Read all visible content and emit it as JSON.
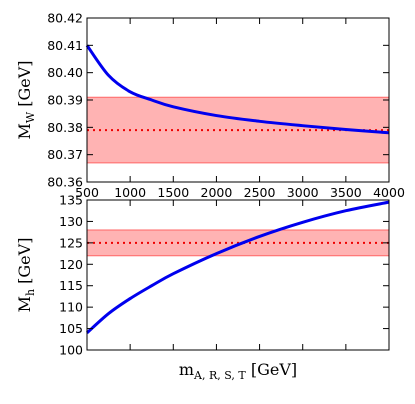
{
  "chart_data": [
    {
      "type": "line",
      "ylabel_main": "M",
      "ylabel_sub": "W",
      "ylabel_unit": " [GeV]",
      "xlabel": "",
      "xlim": [
        500,
        4000
      ],
      "ylim": [
        80.36,
        80.42
      ],
      "xticks": [
        "500",
        "1000",
        "1500",
        "2000",
        "2500",
        "3000",
        "3500",
        "4000"
      ],
      "yticks": [
        "80.36",
        "80.37",
        "80.38",
        "80.39",
        "80.40",
        "80.41",
        "80.42"
      ],
      "band": {
        "low": 80.367,
        "high": 80.391,
        "center": 80.379
      },
      "x": [
        500,
        750,
        1000,
        1250,
        1500,
        2000,
        2500,
        3000,
        3500,
        4000
      ],
      "series": [
        {
          "values": [
            80.41,
            80.399,
            80.393,
            80.39,
            80.3875,
            80.3843,
            80.3822,
            80.3806,
            80.3792,
            80.378
          ]
        }
      ],
      "colors": {
        "line": "#0000ee",
        "band": "#ffb3b3",
        "band_edge": "#ff6666",
        "center": "#ee0000"
      }
    },
    {
      "type": "line",
      "ylabel_main": "M",
      "ylabel_sub": "h",
      "ylabel_unit": " [GeV]",
      "xlabel_main": "m",
      "xlabel_sub": "A, R, S, T",
      "xlabel_unit": " [GeV]",
      "xlim": [
        500,
        4000
      ],
      "ylim": [
        100,
        135
      ],
      "yticks": [
        "100",
        "105",
        "110",
        "115",
        "120",
        "125",
        "130",
        "135"
      ],
      "band": {
        "low": 122,
        "high": 128,
        "center": 125
      },
      "x": [
        500,
        750,
        1000,
        1250,
        1500,
        2000,
        2500,
        3000,
        3500,
        4000
      ],
      "series": [
        {
          "values": [
            104.0,
            108.5,
            112.0,
            115.0,
            117.8,
            122.5,
            126.5,
            129.8,
            132.5,
            134.5
          ]
        }
      ],
      "colors": {
        "line": "#0000ee",
        "band": "#ffb3b3",
        "band_edge": "#ff6666",
        "center": "#ee0000"
      }
    }
  ]
}
